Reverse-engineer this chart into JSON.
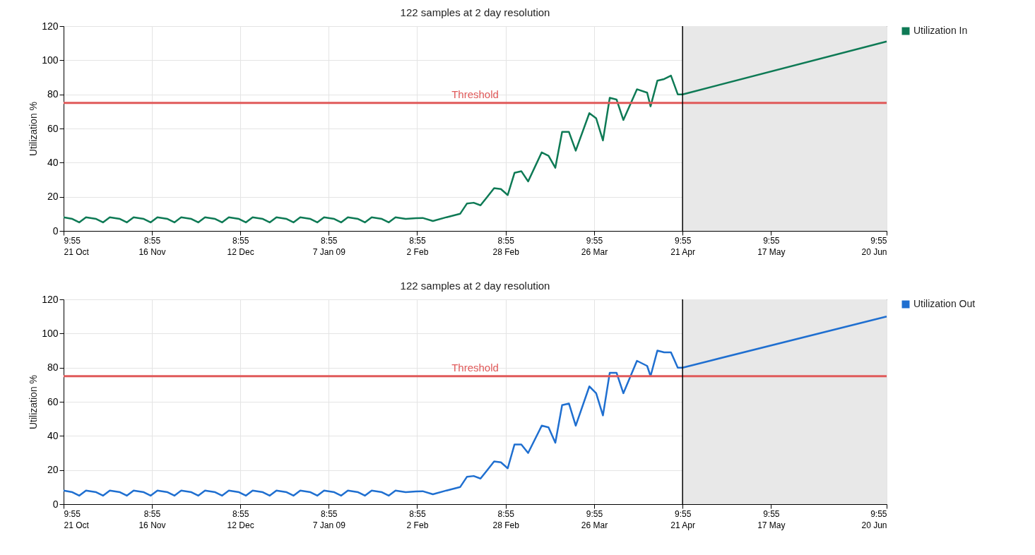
{
  "chart_data": [
    {
      "type": "line",
      "title": "122 samples at 2 day resolution",
      "ylabel": "Utilization %",
      "xlim": [
        "2008-10-21T09:55",
        "2009-06-20T09:55"
      ],
      "ylim": [
        0,
        120
      ],
      "yticks": [
        0,
        20,
        40,
        60,
        80,
        100,
        120
      ],
      "xticks": [
        {
          "value": "2008-10-21T09:55",
          "label": "9:55\n21 Oct"
        },
        {
          "value": "2008-11-16T08:55",
          "label": "8:55\n16 Nov"
        },
        {
          "value": "2008-12-12T08:55",
          "label": "8:55\n12 Dec"
        },
        {
          "value": "2009-01-07T08:55",
          "label": "8:55\n7 Jan 09"
        },
        {
          "value": "2009-02-02T08:55",
          "label": "8:55\n2 Feb"
        },
        {
          "value": "2009-02-28T08:55",
          "label": "8:55\n28 Feb"
        },
        {
          "value": "2009-03-26T09:55",
          "label": "9:55\n26 Mar"
        },
        {
          "value": "2009-04-21T09:55",
          "label": "9:55\n21 Apr"
        },
        {
          "value": "2009-05-17T09:55",
          "label": "9:55\n17 May"
        },
        {
          "value": "2009-06-20T09:55",
          "label": "9:55\n20 Jun"
        }
      ],
      "x": [
        "2008-10-21T09:55",
        "2008-10-24",
        "2008-10-26",
        "2008-10-28",
        "2008-10-31",
        "2008-11-02",
        "2008-11-04",
        "2008-11-07",
        "2008-11-09",
        "2008-11-11",
        "2008-11-14",
        "2008-11-16",
        "2008-11-18",
        "2008-11-21",
        "2008-11-23",
        "2008-11-25",
        "2008-11-28",
        "2008-11-30",
        "2008-12-02",
        "2008-12-05",
        "2008-12-07",
        "2008-12-09",
        "2008-12-12",
        "2008-12-14",
        "2008-12-16",
        "2008-12-19",
        "2008-12-21",
        "2008-12-23",
        "2008-12-26",
        "2008-12-28",
        "2008-12-30",
        "2009-01-02",
        "2009-01-04",
        "2009-01-06",
        "2009-01-09",
        "2009-01-11",
        "2009-01-13",
        "2009-01-16",
        "2009-01-18",
        "2009-01-20",
        "2009-01-23",
        "2009-01-25",
        "2009-01-27",
        "2009-01-30",
        "2009-02-02",
        "2009-02-04",
        "2009-02-07",
        "2009-02-11",
        "2009-02-15",
        "2009-02-17",
        "2009-02-19",
        "2009-02-21",
        "2009-02-23",
        "2009-02-25",
        "2009-02-27",
        "2009-03-01",
        "2009-03-03",
        "2009-03-05",
        "2009-03-07",
        "2009-03-11",
        "2009-03-13",
        "2009-03-15",
        "2009-03-17",
        "2009-03-19",
        "2009-03-21",
        "2009-03-25",
        "2009-03-27",
        "2009-03-29",
        "2009-03-31",
        "2009-04-02",
        "2009-04-04",
        "2009-04-08",
        "2009-04-11",
        "2009-04-12",
        "2009-04-14",
        "2009-04-16",
        "2009-04-18",
        "2009-04-20",
        "2009-04-21T09:55",
        "2009-06-20T09:55"
      ],
      "series": [
        {
          "name": "Utilization In",
          "color": "#0e7a55",
          "values": [
            8,
            7,
            5,
            8,
            7,
            5,
            8,
            7,
            5,
            8,
            7,
            5,
            8,
            7,
            5,
            8,
            7,
            5,
            8,
            7,
            5,
            8,
            7,
            5,
            8,
            7,
            5,
            8,
            7,
            5,
            8,
            7,
            5,
            8,
            7,
            5,
            8,
            7,
            5,
            8,
            7,
            5,
            8,
            7,
            7.4,
            7.6,
            5.8,
            8,
            10,
            16,
            16.5,
            15,
            20,
            25,
            24.5,
            21,
            34,
            35,
            29,
            46,
            44,
            37,
            58,
            58,
            47,
            69,
            66,
            53,
            78,
            77,
            65,
            83,
            81,
            73,
            88,
            89,
            91,
            80,
            80,
            111
          ]
        }
      ],
      "ref_lines": [
        {
          "axis": "y",
          "value": 75,
          "label": "Threshold",
          "color": "#e05a5a"
        },
        {
          "axis": "x",
          "value": "2009-04-21T09:55",
          "color": "#000000"
        }
      ],
      "bands": [
        {
          "axis": "x",
          "from": "2009-04-21T09:55",
          "to": "2009-06-20T09:55",
          "color": "#e8e8e8"
        }
      ],
      "grid": true,
      "legend": "top right"
    },
    {
      "type": "line",
      "title": "122 samples at 2 day resolution",
      "ylabel": "Utilization %",
      "xlim": [
        "2008-10-21T09:55",
        "2009-06-20T09:55"
      ],
      "ylim": [
        0,
        120
      ],
      "yticks": [
        0,
        20,
        40,
        60,
        80,
        100,
        120
      ],
      "xticks": [
        {
          "value": "2008-10-21T09:55",
          "label": "9:55\n21 Oct"
        },
        {
          "value": "2008-11-16T08:55",
          "label": "8:55\n16 Nov"
        },
        {
          "value": "2008-12-12T08:55",
          "label": "8:55\n12 Dec"
        },
        {
          "value": "2009-01-07T08:55",
          "label": "8:55\n7 Jan 09"
        },
        {
          "value": "2009-02-02T08:55",
          "label": "8:55\n2 Feb"
        },
        {
          "value": "2009-02-28T08:55",
          "label": "8:55\n28 Feb"
        },
        {
          "value": "2009-03-26T09:55",
          "label": "9:55\n26 Mar"
        },
        {
          "value": "2009-04-21T09:55",
          "label": "9:55\n21 Apr"
        },
        {
          "value": "2009-05-17T09:55",
          "label": "9:55\n17 May"
        },
        {
          "value": "2009-06-20T09:55",
          "label": "9:55\n20 Jun"
        }
      ],
      "x": [
        "2008-10-21T09:55",
        "2008-10-24",
        "2008-10-26",
        "2008-10-28",
        "2008-10-31",
        "2008-11-02",
        "2008-11-04",
        "2008-11-07",
        "2008-11-09",
        "2008-11-11",
        "2008-11-14",
        "2008-11-16",
        "2008-11-18",
        "2008-11-21",
        "2008-11-23",
        "2008-11-25",
        "2008-11-28",
        "2008-11-30",
        "2008-12-02",
        "2008-12-05",
        "2008-12-07",
        "2008-12-09",
        "2008-12-12",
        "2008-12-14",
        "2008-12-16",
        "2008-12-19",
        "2008-12-21",
        "2008-12-23",
        "2008-12-26",
        "2008-12-28",
        "2008-12-30",
        "2009-01-02",
        "2009-01-04",
        "2009-01-06",
        "2009-01-09",
        "2009-01-11",
        "2009-01-13",
        "2009-01-16",
        "2009-01-18",
        "2009-01-20",
        "2009-01-23",
        "2009-01-25",
        "2009-01-27",
        "2009-01-30",
        "2009-02-02",
        "2009-02-04",
        "2009-02-07",
        "2009-02-11",
        "2009-02-15",
        "2009-02-17",
        "2009-02-19",
        "2009-02-21",
        "2009-02-23",
        "2009-02-25",
        "2009-02-27",
        "2009-03-01",
        "2009-03-03",
        "2009-03-05",
        "2009-03-07",
        "2009-03-11",
        "2009-03-13",
        "2009-03-15",
        "2009-03-17",
        "2009-03-19",
        "2009-03-21",
        "2009-03-25",
        "2009-03-27",
        "2009-03-29",
        "2009-03-31",
        "2009-04-02",
        "2009-04-04",
        "2009-04-08",
        "2009-04-11",
        "2009-04-12",
        "2009-04-14",
        "2009-04-16",
        "2009-04-18",
        "2009-04-20",
        "2009-04-21T09:55",
        "2009-06-20T09:55"
      ],
      "series": [
        {
          "name": "Utilization Out",
          "color": "#1f6fd0",
          "values": [
            8,
            7,
            5,
            8,
            7,
            5,
            8,
            7,
            5,
            8,
            7,
            5,
            8,
            7,
            5,
            8,
            7,
            5,
            8,
            7,
            5,
            8,
            7,
            5,
            8,
            7,
            5,
            8,
            7,
            5,
            8,
            7,
            5,
            8,
            7,
            5,
            8,
            7,
            5,
            8,
            7,
            5,
            8,
            7,
            7.4,
            7.6,
            5.8,
            8,
            10,
            16,
            16.5,
            15,
            20,
            25,
            24.5,
            21,
            35,
            35,
            30,
            46,
            45,
            36,
            58,
            59,
            46,
            69,
            65,
            52,
            77,
            77,
            65,
            84,
            81,
            75,
            90,
            89,
            89,
            80,
            80,
            110
          ]
        }
      ],
      "ref_lines": [
        {
          "axis": "y",
          "value": 75,
          "label": "Threshold",
          "color": "#e05a5a"
        },
        {
          "axis": "x",
          "value": "2009-04-21T09:55",
          "color": "#000000"
        }
      ],
      "bands": [
        {
          "axis": "x",
          "from": "2009-04-21T09:55",
          "to": "2009-06-20T09:55",
          "color": "#e8e8e8"
        }
      ],
      "grid": true,
      "legend": "top right"
    }
  ]
}
